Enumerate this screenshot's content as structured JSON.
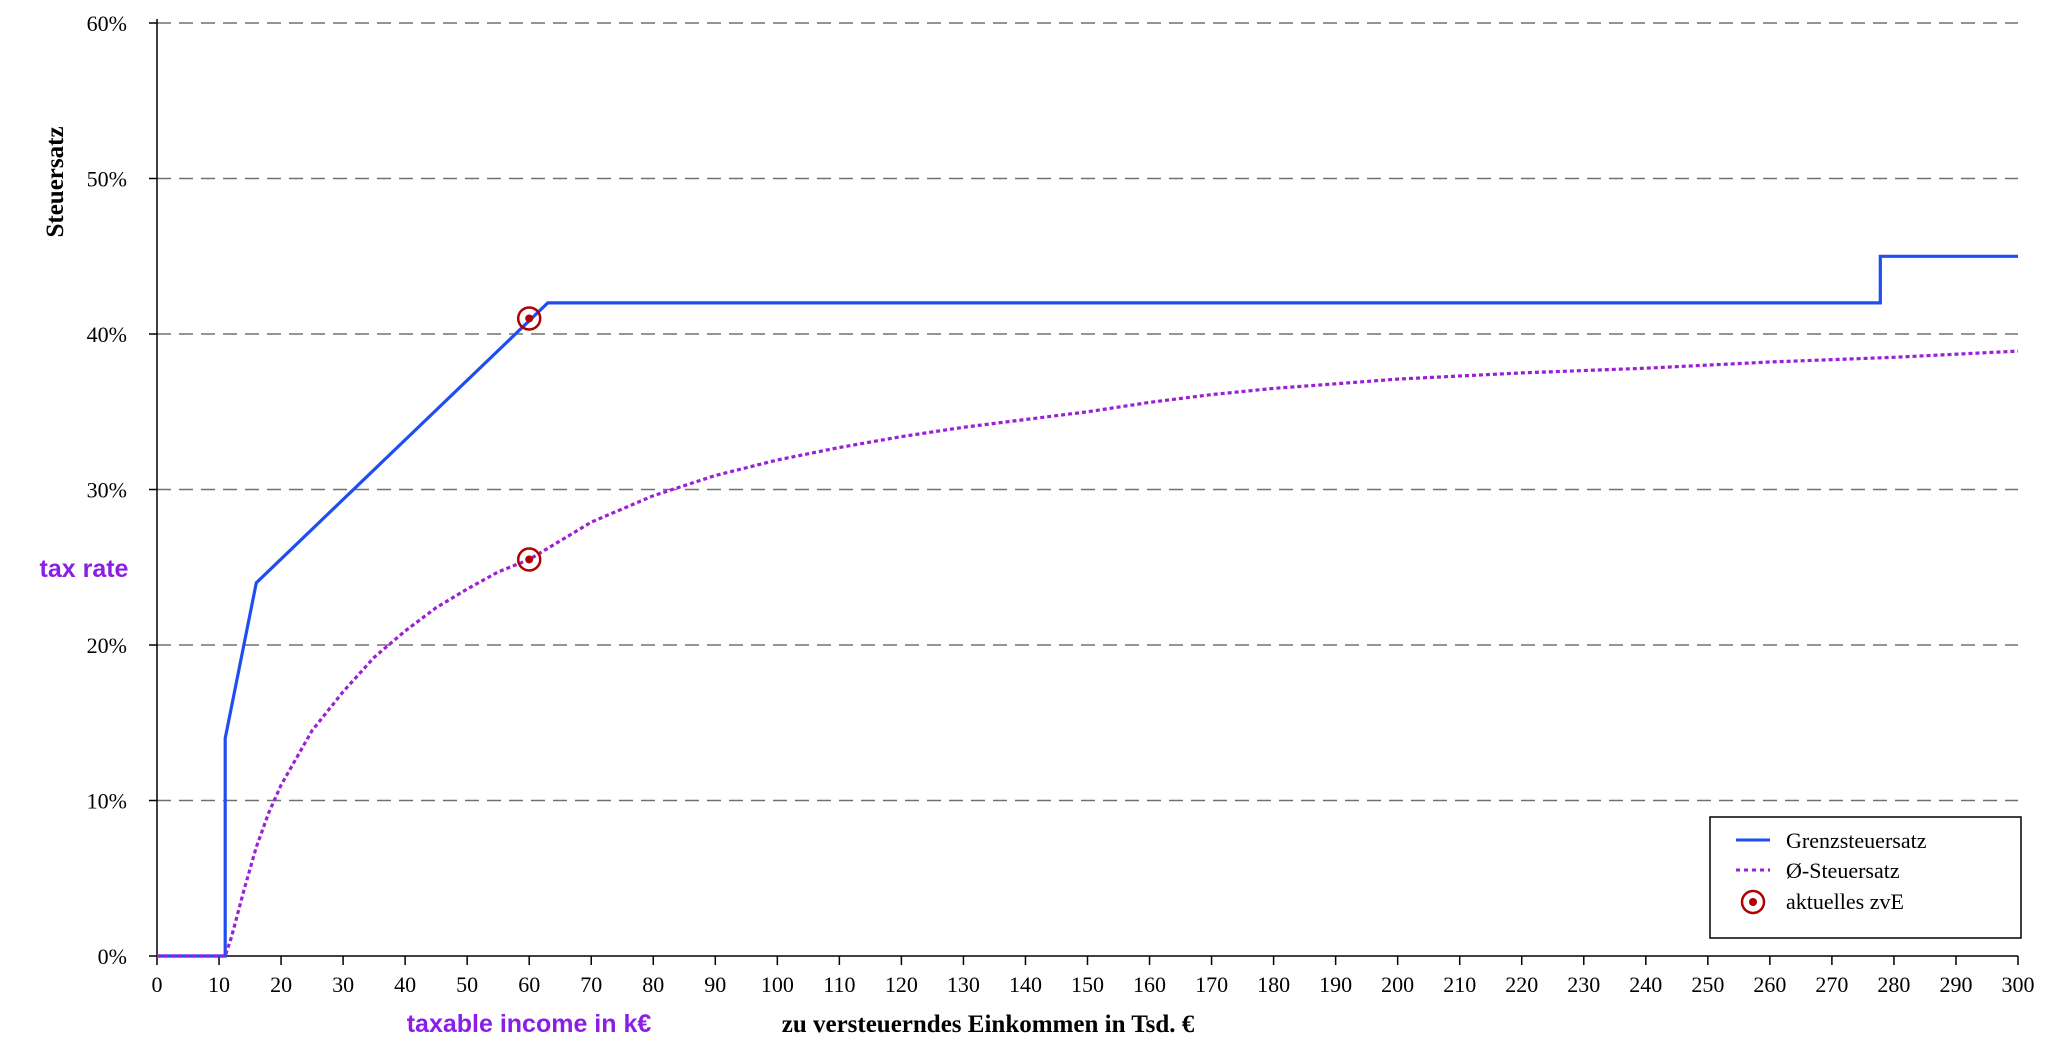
{
  "chart_data": {
    "type": "line",
    "xlabel": "zu versteuerndes Einkommen in Tsd. €",
    "ylabel": "Steuersatz",
    "xlim": [
      0,
      300
    ],
    "ylim": [
      0,
      60
    ],
    "x_ticks": [
      0,
      10,
      20,
      30,
      40,
      50,
      60,
      70,
      80,
      90,
      100,
      110,
      120,
      130,
      140,
      150,
      160,
      170,
      180,
      190,
      200,
      210,
      220,
      230,
      240,
      250,
      260,
      270,
      280,
      290,
      300
    ],
    "y_ticks": [
      0,
      10,
      20,
      30,
      40,
      50,
      60
    ],
    "y_tick_labels": [
      "0%",
      "10%",
      "20%",
      "30%",
      "40%",
      "50%",
      "60%"
    ],
    "grid": "horizontal-dashed",
    "legend_position": "bottom-right",
    "annotations": {
      "y_axis_note": "tax rate",
      "x_axis_note": "taxable income in k€"
    },
    "series": [
      {
        "name": "Grenzsteuersatz",
        "style": "solid",
        "color": "#1f4ef0",
        "points": [
          [
            0,
            0
          ],
          [
            11,
            0
          ],
          [
            11,
            14
          ],
          [
            16,
            24
          ],
          [
            63,
            42
          ],
          [
            277.8,
            42
          ],
          [
            277.8,
            45
          ],
          [
            300,
            45
          ]
        ]
      },
      {
        "name": "Ø-Steuersatz",
        "style": "dotted",
        "color": "#9b1fd6",
        "points": [
          [
            0,
            0
          ],
          [
            11,
            0
          ],
          [
            12,
            1.2
          ],
          [
            14,
            4.2
          ],
          [
            16,
            7
          ],
          [
            18,
            9.2
          ],
          [
            20,
            11
          ],
          [
            25,
            14.5
          ],
          [
            30,
            17
          ],
          [
            35,
            19.2
          ],
          [
            40,
            20.9
          ],
          [
            45,
            22.4
          ],
          [
            50,
            23.6
          ],
          [
            55,
            24.7
          ],
          [
            60,
            25.5
          ],
          [
            70,
            27.9
          ],
          [
            80,
            29.6
          ],
          [
            90,
            30.9
          ],
          [
            100,
            31.9
          ],
          [
            110,
            32.7
          ],
          [
            120,
            33.4
          ],
          [
            130,
            34
          ],
          [
            140,
            34.5
          ],
          [
            150,
            35
          ],
          [
            160,
            35.6
          ],
          [
            170,
            36.1
          ],
          [
            180,
            36.5
          ],
          [
            190,
            36.8
          ],
          [
            200,
            37.1
          ],
          [
            220,
            37.5
          ],
          [
            240,
            37.8
          ],
          [
            260,
            38.2
          ],
          [
            280,
            38.5
          ],
          [
            300,
            38.9
          ]
        ]
      }
    ],
    "markers": {
      "name": "aktuelles zvE",
      "color": "#b00000",
      "points": [
        [
          60,
          41
        ],
        [
          60,
          25.5
        ]
      ]
    }
  }
}
